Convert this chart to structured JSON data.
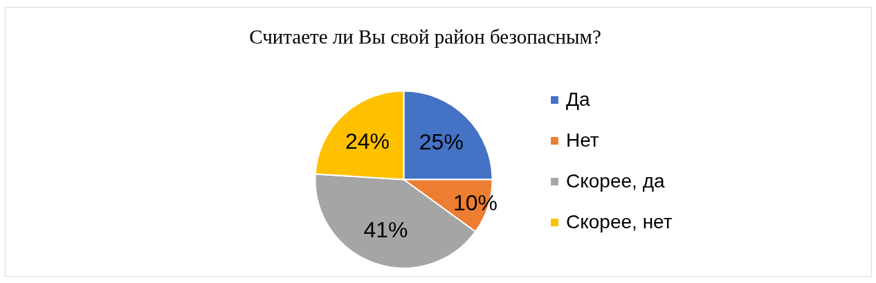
{
  "chart_data": {
    "type": "pie",
    "title": "Считаете ли Вы свой район безопасным?",
    "categories": [
      "Да",
      "Нет",
      "Скорее, да",
      "Скорее, нет"
    ],
    "values": [
      25,
      10,
      41,
      24
    ],
    "colors": [
      "#4472c4",
      "#ed7d31",
      "#a5a5a5",
      "#ffc000"
    ],
    "value_labels": [
      "25%",
      "10%",
      "41%",
      "24%"
    ],
    "legend": "right"
  }
}
